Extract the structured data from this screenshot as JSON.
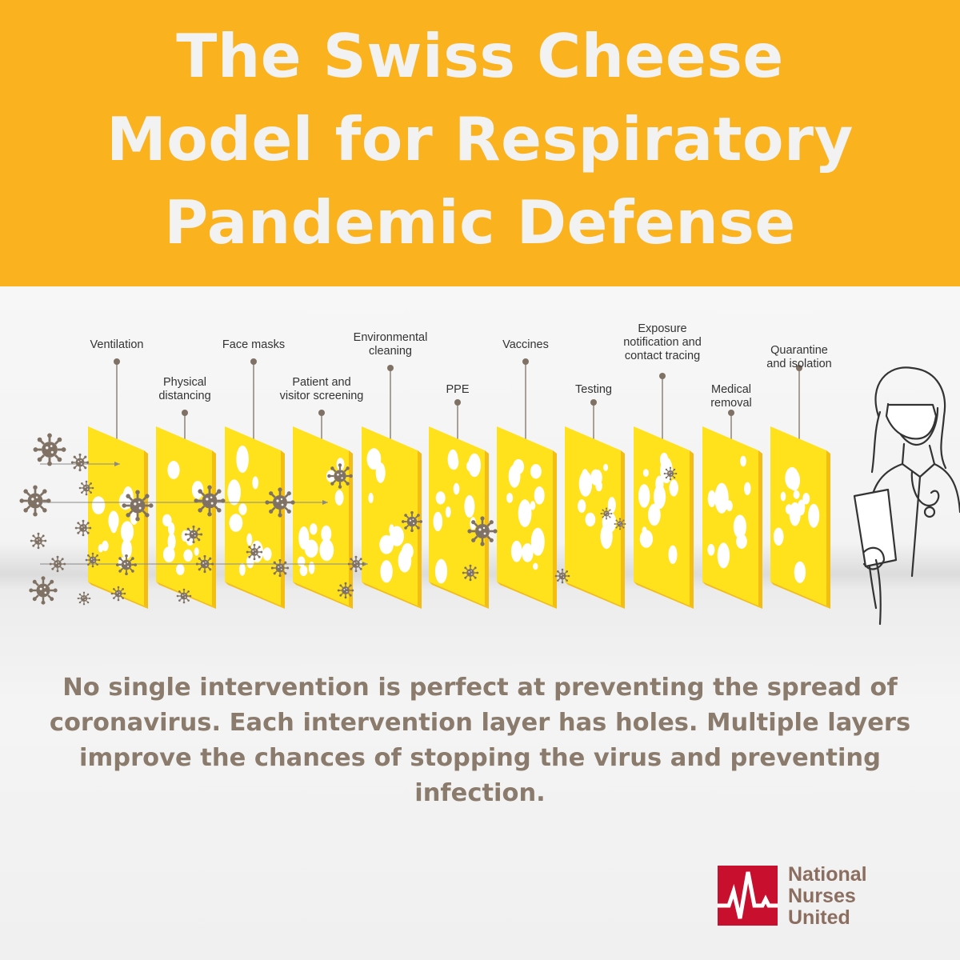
{
  "title_lines": [
    "The Swiss Cheese",
    "Model for Respiratory",
    "Pandemic Defense"
  ],
  "layers": [
    {
      "label": "Ventilation"
    },
    {
      "label": "Physical\ndistancing"
    },
    {
      "label": "Face masks"
    },
    {
      "label": "Patient and\nvisitor screening"
    },
    {
      "label": "Environmental\ncleaning"
    },
    {
      "label": "PPE"
    },
    {
      "label": "Vaccines"
    },
    {
      "label": "Testing"
    },
    {
      "label": "Exposure\nnotification and\ncontact tracing"
    },
    {
      "label": "Medical\nremoval"
    },
    {
      "label": "Quarantine\nand isolation"
    }
  ],
  "body_text": "No single intervention is perfect at preventing the spread of coronavirus. Each intervention layer has holes. Multiple layers improve the chances of stopping the virus and preventing infection.",
  "logo": {
    "lines": [
      "National",
      "Nurses",
      "United"
    ],
    "icon": "nnu-heartbeat-logo-icon"
  },
  "colors": {
    "header": "#fbb21f",
    "title": "#f2f2f2",
    "cheese": "#ffe21c",
    "cheese_edge": "#f3bd12",
    "virus": "#7f7164",
    "body_text": "#8a7b6c",
    "logo_red": "#c8102e"
  },
  "icons": [
    "virus-icon",
    "nurse-illustration",
    "cheese-slice"
  ]
}
